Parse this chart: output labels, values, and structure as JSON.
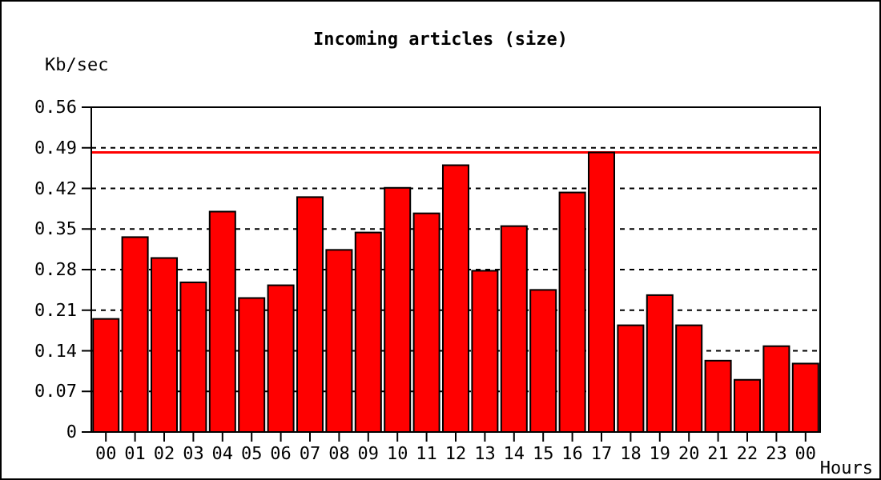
{
  "chart_data": {
    "type": "bar",
    "title": "Incoming articles (size)",
    "ylabel": "Kb/sec",
    "xlabel": "Hours",
    "categories": [
      "00",
      "01",
      "02",
      "03",
      "04",
      "05",
      "06",
      "07",
      "08",
      "09",
      "10",
      "11",
      "12",
      "13",
      "14",
      "15",
      "16",
      "17",
      "18",
      "19",
      "20",
      "21",
      "22",
      "23",
      "00"
    ],
    "values": [
      0.195,
      0.336,
      0.3,
      0.258,
      0.38,
      0.231,
      0.253,
      0.405,
      0.314,
      0.344,
      0.421,
      0.377,
      0.46,
      0.278,
      0.355,
      0.245,
      0.413,
      0.482,
      0.184,
      0.236,
      0.184,
      0.123,
      0.09,
      0.148,
      0.118
    ],
    "color": "#ff0000",
    "ylim": [
      0,
      0.56
    ],
    "yticks": [
      0,
      0.07,
      0.14,
      0.21,
      0.28,
      0.35,
      0.42,
      0.49,
      0.56
    ],
    "grid": "y",
    "ref_lines": [
      {
        "axis": "y",
        "value": 0.482,
        "color": "#ff0000"
      }
    ]
  }
}
